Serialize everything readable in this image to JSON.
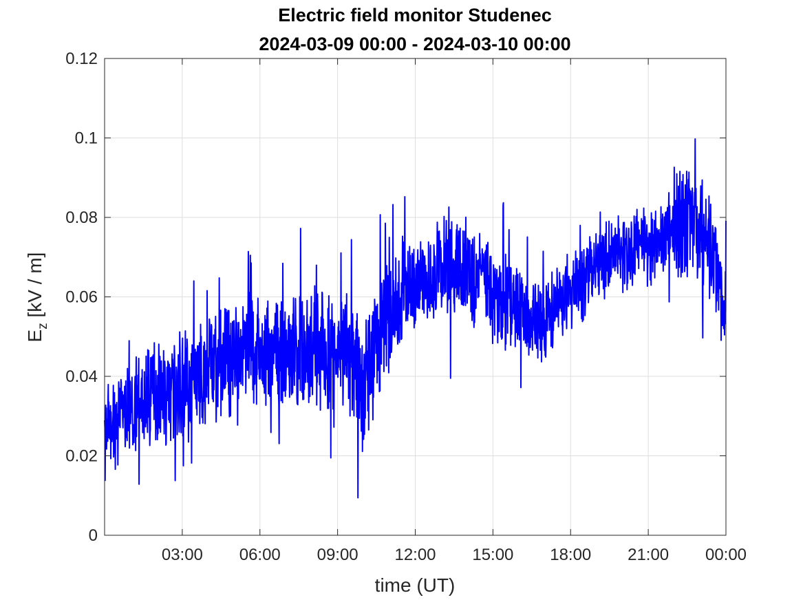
{
  "chart_data": {
    "type": "line",
    "title": [
      "Electric field monitor Studenec",
      "2024-03-09 00:00 - 2024-03-10 00:00"
    ],
    "xlabel": "time (UT)",
    "ylabel": {
      "main": "E",
      "subscript": "z",
      "rest": " [kV / m]"
    },
    "xlim_hours": [
      0,
      24
    ],
    "ylim": [
      0,
      0.12
    ],
    "x_ticks": [
      {
        "hour": 3,
        "label": "03:00"
      },
      {
        "hour": 6,
        "label": "06:00"
      },
      {
        "hour": 9,
        "label": "09:00"
      },
      {
        "hour": 12,
        "label": "12:00"
      },
      {
        "hour": 15,
        "label": "15:00"
      },
      {
        "hour": 18,
        "label": "18:00"
      },
      {
        "hour": 21,
        "label": "21:00"
      },
      {
        "hour": 24,
        "label": "00:00"
      }
    ],
    "y_ticks": [
      {
        "value": 0,
        "label": "0"
      },
      {
        "value": 0.02,
        "label": "0.02"
      },
      {
        "value": 0.04,
        "label": "0.04"
      },
      {
        "value": 0.06,
        "label": "0.06"
      },
      {
        "value": 0.08,
        "label": "0.08"
      },
      {
        "value": 0.1,
        "label": "0.1"
      },
      {
        "value": 0.12,
        "label": "0.12"
      }
    ],
    "grid": true,
    "series": [
      {
        "color": "#0000ff",
        "x_hours": [
          0,
          0.5,
          1,
          1.5,
          2,
          2.5,
          3,
          3.5,
          4,
          4.5,
          5,
          5.5,
          6,
          6.5,
          7,
          7.5,
          8,
          8.5,
          9,
          9.5,
          10,
          10.5,
          11,
          11.5,
          12,
          12.5,
          13,
          13.5,
          14,
          14.5,
          15,
          15.5,
          16,
          16.5,
          17,
          17.5,
          18,
          18.5,
          19,
          19.5,
          20,
          20.5,
          21,
          21.5,
          22,
          22.5,
          23,
          23.5,
          24
        ],
        "mean": [
          0.03,
          0.028,
          0.032,
          0.034,
          0.036,
          0.036,
          0.038,
          0.04,
          0.041,
          0.043,
          0.044,
          0.045,
          0.045,
          0.046,
          0.045,
          0.046,
          0.046,
          0.045,
          0.047,
          0.046,
          0.038,
          0.048,
          0.055,
          0.062,
          0.063,
          0.065,
          0.068,
          0.07,
          0.068,
          0.065,
          0.062,
          0.058,
          0.056,
          0.052,
          0.055,
          0.058,
          0.062,
          0.064,
          0.068,
          0.07,
          0.071,
          0.072,
          0.072,
          0.073,
          0.076,
          0.08,
          0.078,
          0.07,
          0.06
        ],
        "spread": [
          0.007,
          0.008,
          0.008,
          0.009,
          0.009,
          0.01,
          0.01,
          0.01,
          0.011,
          0.011,
          0.011,
          0.011,
          0.011,
          0.011,
          0.011,
          0.011,
          0.011,
          0.011,
          0.011,
          0.012,
          0.013,
          0.011,
          0.01,
          0.01,
          0.009,
          0.009,
          0.01,
          0.012,
          0.011,
          0.01,
          0.009,
          0.009,
          0.008,
          0.008,
          0.008,
          0.007,
          0.007,
          0.007,
          0.007,
          0.007,
          0.007,
          0.007,
          0.007,
          0.008,
          0.01,
          0.011,
          0.01,
          0.009,
          0.008
        ]
      }
    ]
  }
}
